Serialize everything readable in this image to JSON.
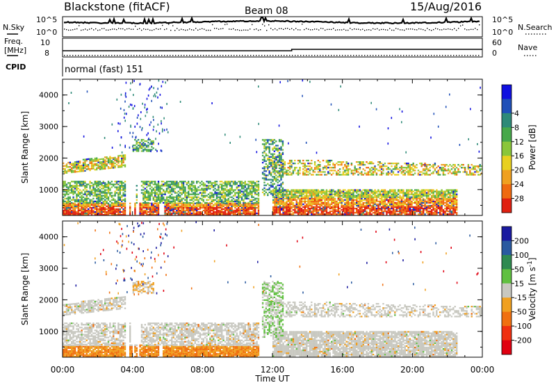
{
  "header": {
    "title": "Blackstone (fitACF)",
    "beam": "Beam 08",
    "date": "15/Aug/2016"
  },
  "noise_panel": {
    "left_label": "N.Sky",
    "left_ticks": [
      "10^5",
      "10^0"
    ],
    "right_label": "N.Search",
    "right_ticks": [
      "10^5",
      "10^0"
    ]
  },
  "freq_panel": {
    "left_label_1": "Freq.",
    "left_label_2": "[MHz]",
    "left_ticks": [
      "10",
      "8"
    ],
    "right_label": "Nave",
    "right_ticks": [
      "60",
      "0"
    ]
  },
  "cpid": {
    "label": "CPID",
    "value": "normal (fast) 151"
  },
  "x_axis": {
    "label": "Time UT",
    "ticks": [
      "00:00",
      "04:00",
      "08:00",
      "12:00",
      "16:00",
      "20:00",
      "00:00"
    ]
  },
  "chart_data": [
    {
      "type": "heatmap",
      "name": "power",
      "ylabel": "Slant Range [km]",
      "yticks": [
        "1000",
        "2000",
        "3000",
        "4000"
      ],
      "ylim": [
        180,
        4500
      ],
      "xlim_hours": [
        0,
        24
      ],
      "colorbar": {
        "label": "Power [dB]",
        "ticks": [
          "4",
          "8",
          "12",
          "16",
          "20",
          "24",
          "28"
        ],
        "colors": [
          "#1010e0",
          "#2050b8",
          "#2e8a78",
          "#47a84a",
          "#8ac63a",
          "#e8d020",
          "#f0a020",
          "#ef6a10",
          "#e02010"
        ]
      }
    },
    {
      "type": "heatmap",
      "name": "velocity",
      "ylabel": "Slant Range [km]",
      "yticks": [
        "1000",
        "2000",
        "3000",
        "4000"
      ],
      "ylim": [
        180,
        4500
      ],
      "xlim_hours": [
        0,
        24
      ],
      "colorbar": {
        "label": "Velocity [m s",
        "label_sup": "-1",
        "label_end": "]",
        "ticks": [
          "200",
          "100",
          "50",
          "15",
          "-15",
          "-50",
          "-100",
          "-200"
        ],
        "colors": [
          "#1a1aa0",
          "#2a5aa0",
          "#2f8a50",
          "#60c040",
          "#c8c8c0",
          "#f0a020",
          "#f07010",
          "#f03010",
          "#e00010"
        ]
      }
    }
  ]
}
